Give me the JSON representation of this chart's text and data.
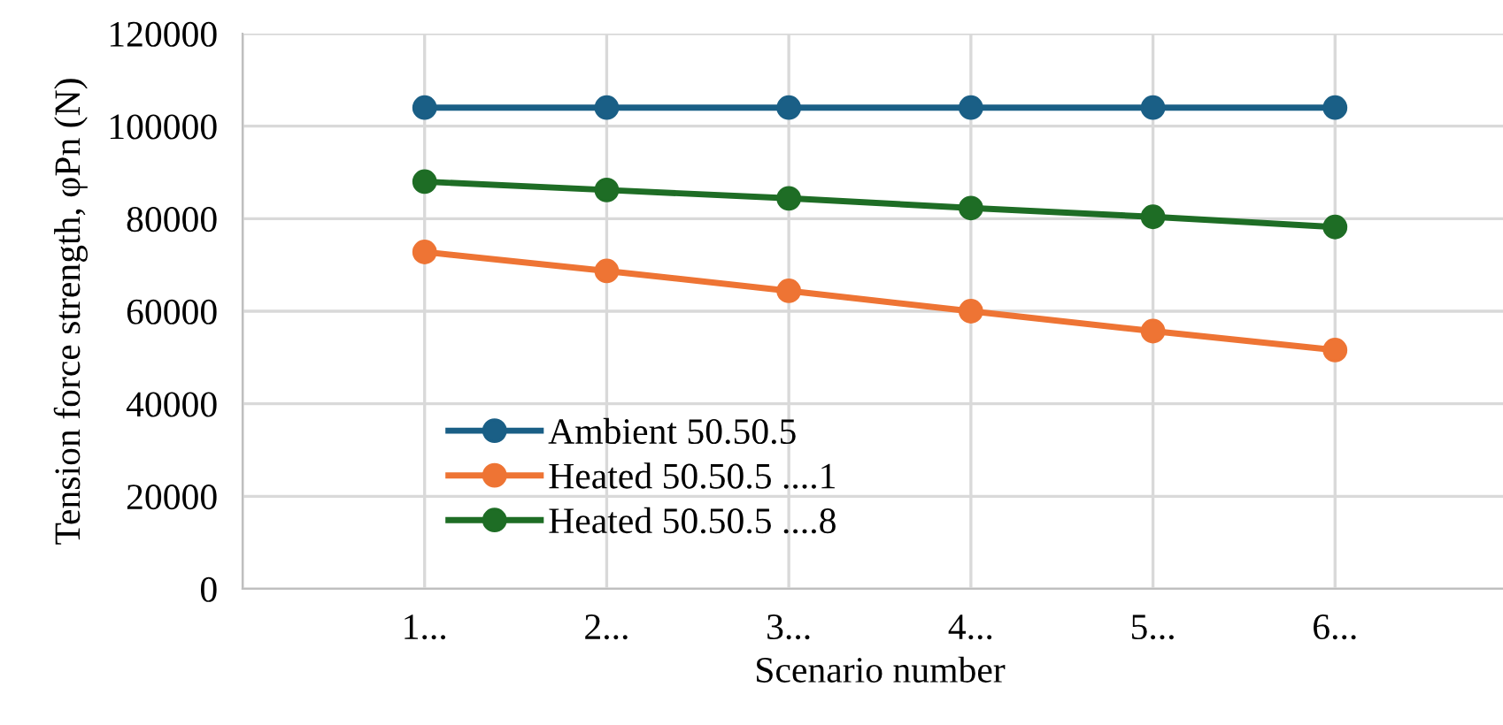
{
  "chart_data": {
    "type": "line",
    "xlabel": "Scenario number",
    "ylabel": "Tension force strength, φPn (N)",
    "categories": [
      null,
      "1...",
      "2...",
      "3...",
      "4...",
      "5...",
      "6...",
      null
    ],
    "ylim": [
      0,
      120000
    ],
    "yticks": [
      0,
      20000,
      40000,
      60000,
      80000,
      100000,
      120000
    ],
    "grid": true,
    "legend": "bottom left",
    "marker": "circle",
    "line_style": "solid",
    "series": [
      {
        "name": "Ambient 50.50.5",
        "color": "#1a5f86",
        "values": [
          null,
          104000,
          104000,
          104000,
          104000,
          104000,
          104000,
          null
        ]
      },
      {
        "name": "Heated 50.50.5 ....1",
        "color": "#ee7434",
        "values": [
          null,
          72800,
          68700,
          64400,
          60000,
          55700,
          51600,
          null
        ]
      },
      {
        "name": "Heated 50.50.5 ....8",
        "color": "#1e6d25",
        "values": [
          null,
          88000,
          86200,
          84400,
          82300,
          80400,
          78200,
          null
        ]
      }
    ]
  }
}
